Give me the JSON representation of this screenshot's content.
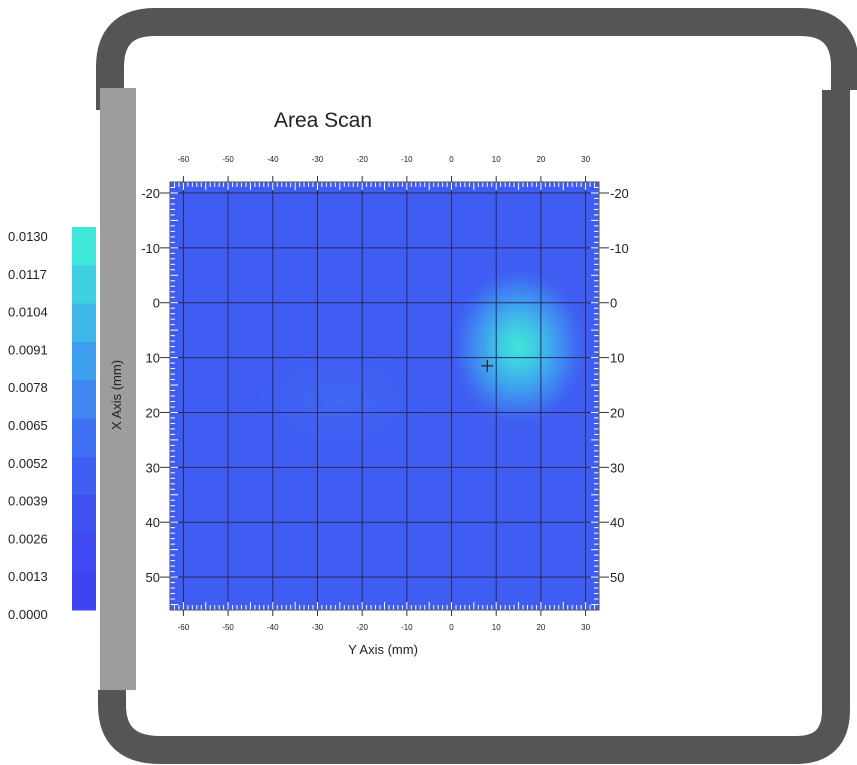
{
  "chart_data": {
    "type": "heatmap",
    "title": "Area Scan",
    "xlabel": "Y Axis (mm)",
    "ylabel": "X Axis (mm)",
    "x_ticks": [
      -60,
      -50,
      -40,
      -30,
      -20,
      -10,
      0,
      10,
      20,
      30
    ],
    "x_tick_labels": [
      "-60",
      "-50",
      "-40",
      "-30",
      "-20",
      "-10",
      "0",
      "10",
      "20",
      "30"
    ],
    "y_ticks": [
      -20,
      -10,
      0,
      10,
      20,
      30,
      40,
      50
    ],
    "y_tick_labels": [
      "-20",
      "-10",
      "0",
      "10",
      "20",
      "30",
      "40",
      "50"
    ],
    "xlim": [
      -63,
      33
    ],
    "ylim": [
      -22,
      56
    ],
    "grid": true,
    "hotspot": {
      "x": 15,
      "y": 8,
      "peak": 0.013
    },
    "marker": {
      "x": 8,
      "y": 11.5
    },
    "colorbar": {
      "min": 0.0,
      "max": 0.013,
      "labels": [
        "0.0130",
        "0.0117",
        "0.0104",
        "0.0091",
        "0.0078",
        "0.0065",
        "0.0052",
        "0.0039",
        "0.0026",
        "0.0013",
        "0.0000"
      ],
      "colors": [
        "#3ee7d9",
        "#3fcfe2",
        "#3fb7ea",
        "#3f9fef",
        "#3f86f1",
        "#3f6ff2",
        "#3f5ef3",
        "#3f52f2",
        "#3f49f1",
        "#3f43f0"
      ]
    }
  }
}
